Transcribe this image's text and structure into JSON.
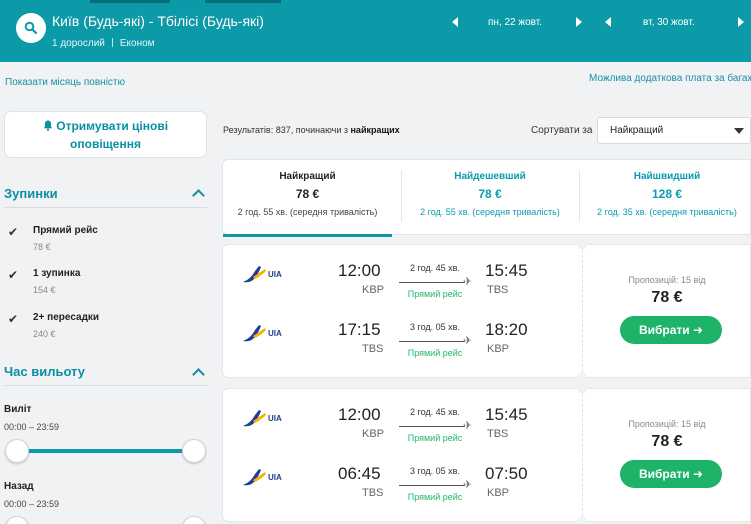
{
  "search": {
    "route": "Київ (Будь-які) - Тбілісі (Будь-які)",
    "passengers": "1 дорослий",
    "cabin": "Економ",
    "depart_date": "пн, 22 жовт.",
    "return_date": "вт, 30 жовт."
  },
  "links": {
    "show_month": "Показати місяць повністю",
    "extra_fee": "Можлива додаткова плата за багаж"
  },
  "sidebar": {
    "alert_button": "Отримувати цінові оповіщення",
    "stops_title": "Зупинки",
    "stops": [
      {
        "label": "Прямий рейс",
        "price": "78 €"
      },
      {
        "label": "1 зупинка",
        "price": "154 €"
      },
      {
        "label": "2+ пересадки",
        "price": "240 €"
      }
    ],
    "departure_time_title": "Час вильоту",
    "departure": {
      "label": "Виліт",
      "range": "00:00 – 23:59"
    },
    "return": {
      "label": "Назад",
      "range": "00:00 – 23:59"
    }
  },
  "results": {
    "count_prefix": "Результатів: 837, починаючи з ",
    "count_bold": "найкращих",
    "sort_label": "Сортувати за",
    "sort_value": "Найкращий"
  },
  "tabs": [
    {
      "title": "Найкращий",
      "price": "78 €",
      "duration": "2 год. 55 хв. (середня тривалість)"
    },
    {
      "title": "Найдешевший",
      "price": "78 €",
      "duration": "2 год. 55 хв. (середня тривалість)"
    },
    {
      "title": "Найшвидший",
      "price": "128 €",
      "duration": "2 год. 35 хв. (середня тривалість)"
    }
  ],
  "cards": [
    {
      "offers": "Пропозицій: 15 від",
      "price": "78 €",
      "button": "Вибрати ➜",
      "legs": [
        {
          "airline": "UIA",
          "dep_time": "12:00",
          "dep_code": "KBP",
          "duration": "2 год. 45 хв.",
          "stops": "Прямий рейс",
          "arr_time": "15:45",
          "arr_code": "TBS"
        },
        {
          "airline": "UIA",
          "dep_time": "17:15",
          "dep_code": "TBS",
          "duration": "3 год. 05 хв.",
          "stops": "Прямий рейс",
          "arr_time": "18:20",
          "arr_code": "KBP"
        }
      ]
    },
    {
      "offers": "Пропозицій: 15 від",
      "price": "78 €",
      "button": "Вибрати ➜",
      "legs": [
        {
          "airline": "UIA",
          "dep_time": "12:00",
          "dep_code": "KBP",
          "duration": "2 год. 45 хв.",
          "stops": "Прямий рейс",
          "arr_time": "15:45",
          "arr_code": "TBS"
        },
        {
          "airline": "UIA",
          "dep_time": "06:45",
          "dep_code": "TBS",
          "duration": "3 год. 05 хв.",
          "stops": "Прямий рейс",
          "arr_time": "07:50",
          "arr_code": "KBP"
        }
      ]
    }
  ],
  "colors": {
    "brand": "#0d9aa8",
    "accent": "#1db46a",
    "link": "#1a8fa6"
  }
}
